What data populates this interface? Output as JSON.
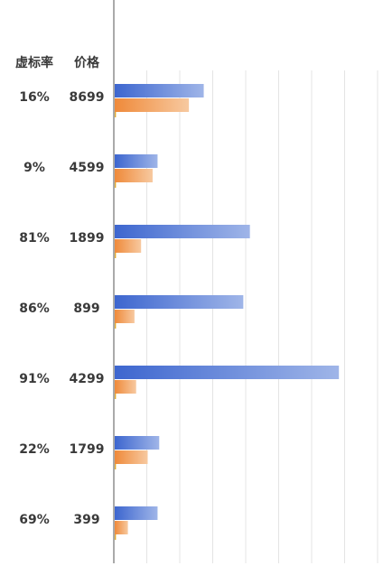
{
  "table": {
    "headers": [
      "虚标率",
      "价格"
    ]
  },
  "chart_data": {
    "type": "bar",
    "orientation": "horizontal",
    "grid": true,
    "categories": [
      {
        "rate": "16%",
        "price": "8699"
      },
      {
        "rate": "9%",
        "price": "4599"
      },
      {
        "rate": "81%",
        "price": "1899"
      },
      {
        "rate": "86%",
        "price": "899"
      },
      {
        "rate": "91%",
        "price": "4299"
      },
      {
        "rate": "22%",
        "price": "1799"
      },
      {
        "rate": "69%",
        "price": "399"
      }
    ],
    "series": [
      {
        "color": "#4a72d4",
        "values": [
          2.7,
          1.3,
          4.1,
          3.9,
          6.8,
          1.35,
          1.3
        ]
      },
      {
        "color": "#ef8b3d",
        "values": [
          2.25,
          1.15,
          0.8,
          0.6,
          0.65,
          1.0,
          0.4
        ]
      },
      {
        "color": "#e0a020",
        "values": [
          0.03,
          0.03,
          0.03,
          0.03,
          0.03,
          0.03,
          0.03
        ]
      }
    ],
    "xlim": [
      0,
      8
    ]
  }
}
